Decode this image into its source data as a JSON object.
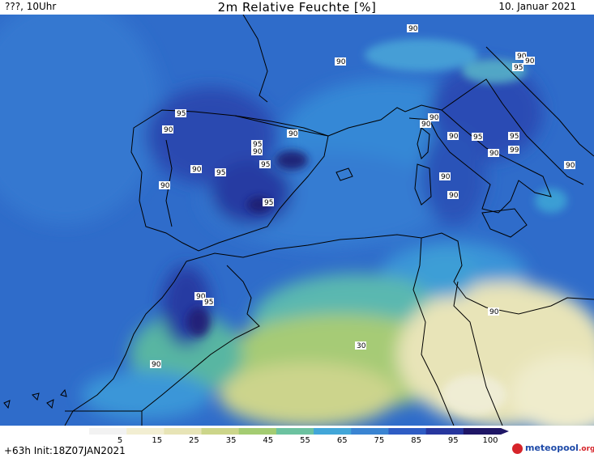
{
  "header": {
    "left": "???, 10Uhr",
    "title": "2m Relative Feuchte [%]",
    "right": "10. Januar 2021"
  },
  "footer": {
    "init": "+63h Init:18Z07JAN2021"
  },
  "legend": {
    "ticks": [
      "5",
      "15",
      "25",
      "35",
      "45",
      "55",
      "65",
      "75",
      "85",
      "95",
      "100"
    ],
    "colors": [
      "#f2f2f2",
      "#f2eed2",
      "#e7e4b6",
      "#ccd58a",
      "#a4cc72",
      "#6cc2a0",
      "#42a6d8",
      "#3a84d2",
      "#2e5cc4",
      "#27369e",
      "#1f1666"
    ]
  },
  "contour_labels": [
    "90",
    "90",
    "95",
    "90",
    "95",
    "90",
    "90",
    "95",
    "95",
    "90",
    "90",
    "95",
    "90",
    "90",
    "90",
    "95",
    "90",
    "90",
    "90",
    "95",
    "90",
    "95",
    "99",
    "90",
    "90",
    "90",
    "90",
    "95",
    "90",
    "30"
  ],
  "brand": {
    "name": "meteopool",
    "tld": ".org"
  }
}
